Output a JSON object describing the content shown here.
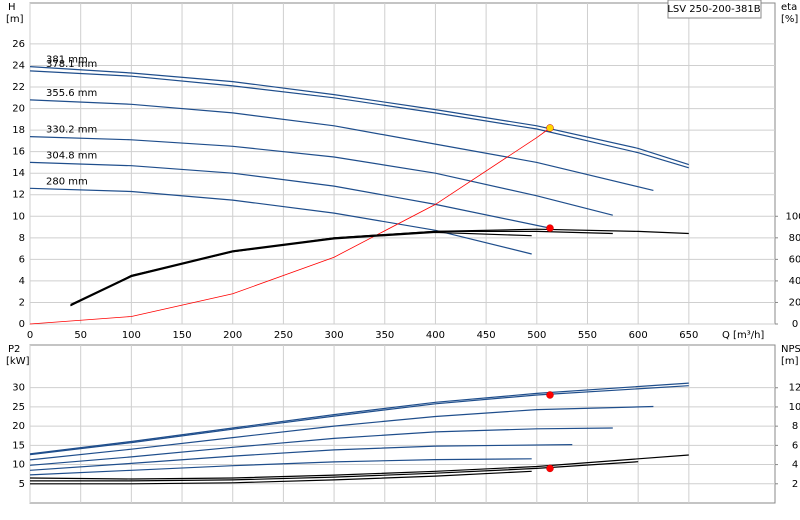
{
  "chart_data": [
    {
      "type": "line",
      "title": "LSV 250-200-381B",
      "x_label": "Q [m³/h]",
      "y_label": "H",
      "y_unit": "[m]",
      "y2_label": "eta",
      "y2_unit": "[%]",
      "xlim": [
        0,
        735
      ],
      "xticks": [
        0,
        50,
        100,
        150,
        200,
        250,
        300,
        350,
        400,
        450,
        500,
        550,
        600,
        650
      ],
      "ylim": [
        0,
        29.8
      ],
      "yticks": [
        0,
        2,
        4,
        6,
        8,
        10,
        12,
        14,
        16,
        18,
        20,
        22,
        24,
        26
      ],
      "y2lim": [
        0,
        298
      ],
      "y2ticks": [
        0,
        20,
        40,
        60,
        80,
        100
      ],
      "grid": true,
      "series": [
        {
          "name": "381 mm",
          "color": "#1f4e8c",
          "x": [
            0,
            100,
            200,
            300,
            400,
            500,
            600,
            650
          ],
          "values": [
            23.9,
            23.3,
            22.5,
            21.3,
            19.9,
            18.4,
            16.3,
            14.8
          ]
        },
        {
          "name": "378.1 mm",
          "color": "#1f4e8c",
          "x": [
            0,
            100,
            200,
            300,
            400,
            500,
            600,
            650
          ],
          "values": [
            23.5,
            23.0,
            22.1,
            21.0,
            19.6,
            18.1,
            15.9,
            14.5
          ]
        },
        {
          "name": "355.6 mm",
          "color": "#1f4e8c",
          "x": [
            0,
            100,
            200,
            300,
            400,
            500,
            615
          ],
          "values": [
            20.8,
            20.4,
            19.6,
            18.4,
            16.7,
            15.0,
            12.4
          ]
        },
        {
          "name": "330.2 mm",
          "color": "#1f4e8c",
          "x": [
            0,
            100,
            200,
            300,
            400,
            500,
            575
          ],
          "values": [
            17.4,
            17.1,
            16.5,
            15.5,
            14.0,
            11.9,
            10.1
          ]
        },
        {
          "name": "304.8 mm",
          "color": "#1f4e8c",
          "x": [
            0,
            100,
            200,
            300,
            400,
            513
          ],
          "values": [
            15.0,
            14.7,
            14.0,
            12.8,
            11.1,
            8.9
          ]
        },
        {
          "name": "280 mm",
          "color": "#1f4e8c",
          "x": [
            0,
            100,
            200,
            300,
            400,
            495
          ],
          "values": [
            12.6,
            12.3,
            11.5,
            10.3,
            8.7,
            6.5
          ]
        },
        {
          "color": "#ff0000",
          "x": [
            0,
            100,
            200,
            300,
            400,
            500,
            513
          ],
          "values": [
            0,
            0.7,
            2.8,
            6.2,
            11.1,
            17.3,
            18.2
          ]
        },
        {
          "color": "#000000",
          "axis": "y2",
          "x": [
            40,
            100,
            200,
            300,
            400,
            500,
            600,
            650
          ],
          "values": [
            18,
            45,
            68,
            80,
            86,
            88,
            86,
            84
          ]
        },
        {
          "color": "#000000",
          "axis": "y2",
          "x": [
            40,
            100,
            200,
            300,
            400,
            500,
            575
          ],
          "values": [
            17,
            45,
            67,
            80,
            86,
            86,
            84
          ]
        },
        {
          "color": "#000000",
          "axis": "y2",
          "x": [
            40,
            100,
            200,
            300,
            400,
            495
          ],
          "values": [
            17,
            44,
            67,
            79,
            85,
            82
          ]
        }
      ],
      "markers": [
        {
          "x": 513,
          "value": 18.2,
          "color": "#ffd700"
        },
        {
          "x": 513,
          "value": 89,
          "color": "#ff0000",
          "axis": "y2"
        }
      ]
    },
    {
      "type": "line",
      "y_label": "P2",
      "y_unit": "[kW]",
      "y2_label": "NPSH",
      "y2_unit": "[m]",
      "ylim": [
        0,
        41.1
      ],
      "yticks": [
        5,
        10,
        15,
        20,
        25,
        30
      ],
      "y2lim": [
        0,
        16.45
      ],
      "y2ticks": [
        2,
        4,
        6,
        8,
        10,
        12
      ],
      "grid": true,
      "series": [
        {
          "color": "#1f4e8c",
          "x": [
            0,
            100,
            200,
            300,
            400,
            500,
            650
          ],
          "values": [
            12.8,
            16,
            19.5,
            23,
            26.2,
            28.5,
            31.2
          ]
        },
        {
          "color": "#1f4e8c",
          "x": [
            0,
            100,
            200,
            300,
            400,
            500,
            650
          ],
          "values": [
            12.6,
            15.7,
            19.2,
            22.6,
            25.8,
            28.1,
            30.5
          ]
        },
        {
          "color": "#1f4e8c",
          "x": [
            0,
            100,
            200,
            300,
            400,
            500,
            615
          ],
          "values": [
            11.2,
            14,
            17,
            20,
            22.5,
            24.3,
            25.1
          ]
        },
        {
          "color": "#1f4e8c",
          "x": [
            0,
            100,
            200,
            300,
            400,
            500,
            575
          ],
          "values": [
            9.8,
            12,
            14.5,
            16.8,
            18.5,
            19.3,
            19.5
          ]
        },
        {
          "color": "#1f4e8c",
          "x": [
            0,
            100,
            200,
            300,
            400,
            535
          ],
          "values": [
            8.5,
            10.3,
            12.2,
            13.8,
            14.8,
            15.2
          ]
        },
        {
          "color": "#1f4e8c",
          "x": [
            0,
            100,
            200,
            300,
            400,
            495
          ],
          "values": [
            7.3,
            8.5,
            9.7,
            10.7,
            11.3,
            11.5
          ]
        },
        {
          "color": "#000000",
          "axis": "y2",
          "x": [
            0,
            100,
            200,
            300,
            400,
            500,
            650
          ],
          "values": [
            2.6,
            2.5,
            2.6,
            2.9,
            3.3,
            3.8,
            5.0
          ]
        },
        {
          "color": "#000000",
          "axis": "y2",
          "x": [
            0,
            100,
            200,
            300,
            400,
            500,
            600
          ],
          "values": [
            2.3,
            2.3,
            2.4,
            2.7,
            3.1,
            3.6,
            4.3
          ]
        },
        {
          "color": "#000000",
          "axis": "y2",
          "x": [
            0,
            100,
            200,
            300,
            400,
            495
          ],
          "values": [
            2.0,
            2.0,
            2.1,
            2.4,
            2.8,
            3.3
          ]
        }
      ],
      "markers": [
        {
          "x": 513,
          "value": 28.1,
          "color": "#ff0000"
        },
        {
          "x": 513,
          "value": 3.6,
          "color": "#ff0000",
          "axis": "y2"
        }
      ]
    }
  ]
}
